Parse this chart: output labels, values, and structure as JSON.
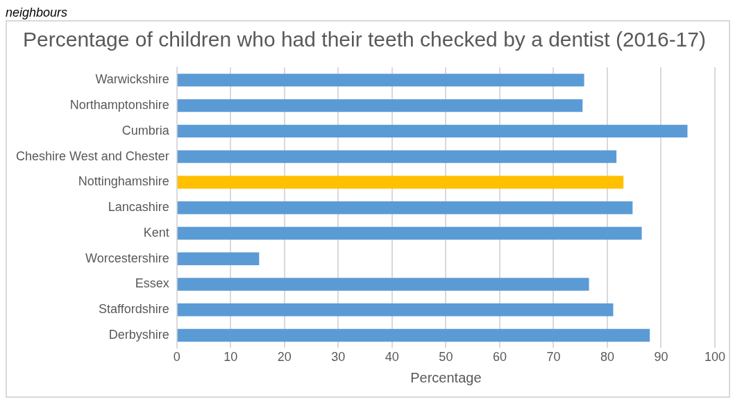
{
  "chart_data": {
    "type": "bar",
    "orientation": "horizontal",
    "title": "Percentage of children who had their teeth checked by a dentist (2016-17)",
    "xlabel": "Percentage",
    "categories": [
      "Warwickshire",
      "Northamptonshire",
      "Cumbria",
      "Cheshire West and Chester",
      "Nottinghamshire",
      "Lancashire",
      "Kent",
      "Worcestershire",
      "Essex",
      "Staffordshire",
      "Derbyshire"
    ],
    "values": [
      75.7,
      75.4,
      94.9,
      81.7,
      83.0,
      84.7,
      86.4,
      15.3,
      76.6,
      81.1,
      87.9
    ],
    "colors": [
      "#5b9bd5",
      "#5b9bd5",
      "#5b9bd5",
      "#5b9bd5",
      "#ffc000",
      "#5b9bd5",
      "#5b9bd5",
      "#5b9bd5",
      "#5b9bd5",
      "#5b9bd5",
      "#5b9bd5"
    ],
    "xlim": [
      0,
      100
    ],
    "xticks": [
      0,
      10,
      20,
      30,
      40,
      50,
      60,
      70,
      80,
      90,
      100
    ],
    "grid": "x",
    "legend": false,
    "annotations": [
      "neighbours"
    ]
  }
}
